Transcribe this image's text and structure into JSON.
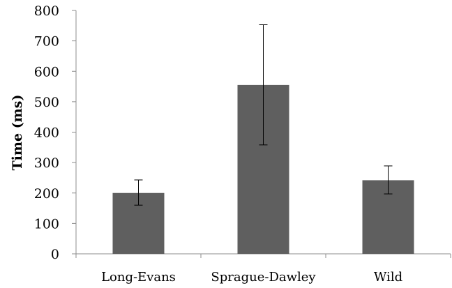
{
  "chart_data": {
    "type": "bar",
    "title": "",
    "xlabel": "",
    "ylabel": "Time (ms)",
    "categories": [
      "Long-Evans",
      "Sprague-Dawley",
      "Wild"
    ],
    "values": [
      200,
      555,
      242
    ],
    "error_low": [
      160,
      358,
      197
    ],
    "error_high": [
      243,
      753,
      289
    ],
    "ylim": [
      0,
      800
    ],
    "yticks": [
      0,
      100,
      200,
      300,
      400,
      500,
      600,
      700,
      800
    ],
    "grid": false,
    "legend": "none",
    "bar_color": "#5f5f5f"
  }
}
